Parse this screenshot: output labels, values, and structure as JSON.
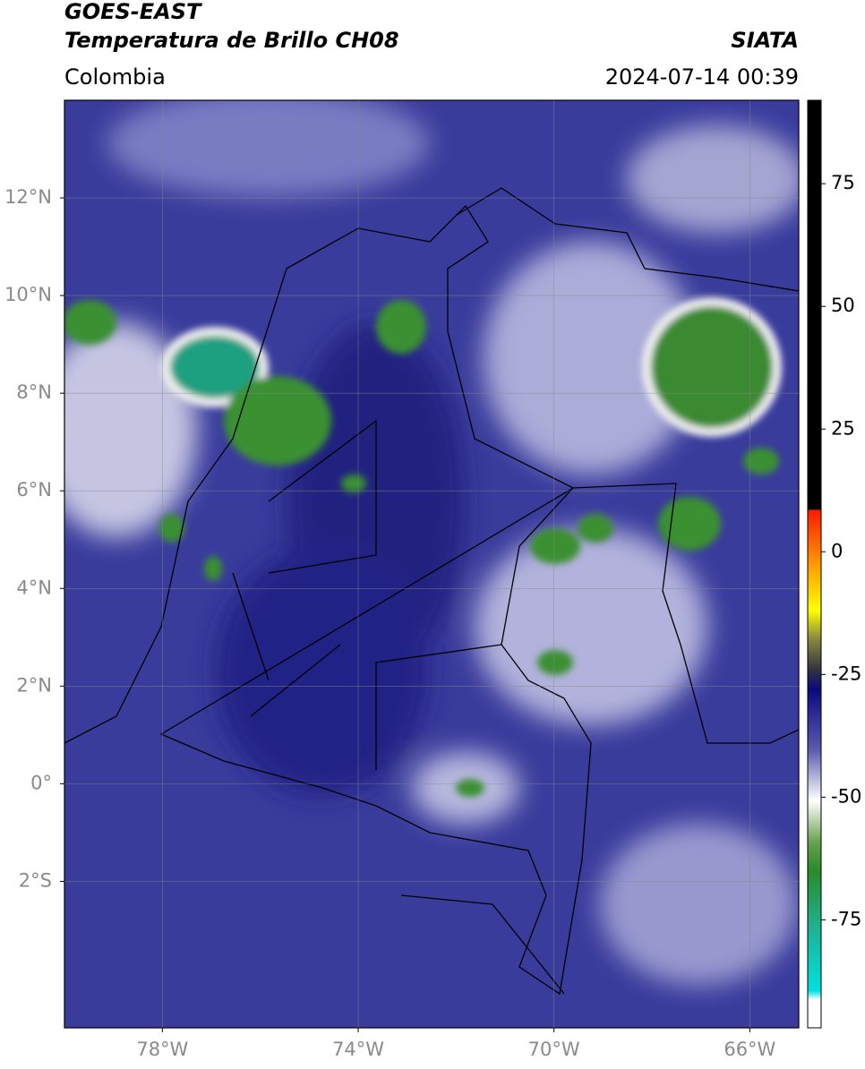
{
  "header": {
    "title": "GOES-EAST",
    "subtitle": "Temperatura de Brillo CH08",
    "source": "SIATA",
    "region": "Colombia",
    "timestamp": "2024-07-14 00:39"
  },
  "map": {
    "xlim": [
      -80,
      -65
    ],
    "ylim": [
      -5,
      14
    ],
    "xticks": [
      {
        "value": -78,
        "label": "78°W"
      },
      {
        "value": -74,
        "label": "74°W"
      },
      {
        "value": -70,
        "label": "70°W"
      },
      {
        "value": -66,
        "label": "66°W"
      }
    ],
    "yticks": [
      {
        "value": 12,
        "label": "12°N"
      },
      {
        "value": 10,
        "label": "10°N"
      },
      {
        "value": 8,
        "label": "8°N"
      },
      {
        "value": 6,
        "label": "6°N"
      },
      {
        "value": 4,
        "label": "4°N"
      },
      {
        "value": 2,
        "label": "2°N"
      },
      {
        "value": 0,
        "label": "0°"
      },
      {
        "value": -2,
        "label": "2°S"
      }
    ],
    "grid": true
  },
  "colorbar": {
    "lim": [
      -97,
      92
    ],
    "ticks": [
      75,
      50,
      25,
      0,
      -25,
      -50,
      -75
    ]
  }
}
